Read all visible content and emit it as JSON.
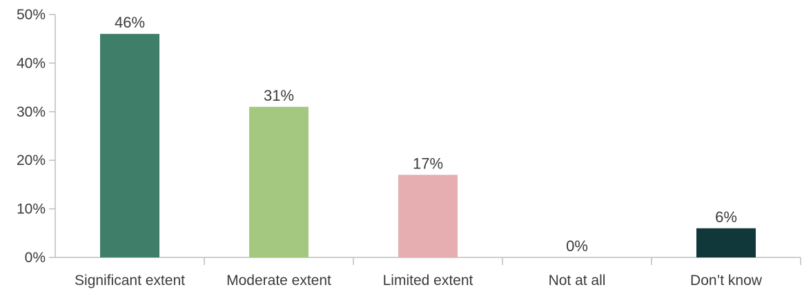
{
  "chart_data": {
    "type": "bar",
    "categories": [
      "Significant extent",
      "Moderate extent",
      "Limited extent",
      "Not at all",
      "Don’t know"
    ],
    "values": [
      46,
      31,
      17,
      0,
      6
    ],
    "value_labels": [
      "46%",
      "31%",
      "17%",
      "0%",
      "6%"
    ],
    "bar_colors": [
      "#3f7f69",
      "#a5c880",
      "#e6aeb0",
      "#a5c880",
      "#10373a"
    ],
    "title": "",
    "xlabel": "",
    "ylabel": "",
    "ylim": [
      0,
      50
    ],
    "yticks": [
      0,
      10,
      20,
      30,
      40,
      50
    ],
    "ytick_labels": [
      "0%",
      "10%",
      "20%",
      "30%",
      "40%",
      "50%"
    ],
    "grid": false,
    "legend": "none",
    "axis_color": "#bdbdbd"
  }
}
